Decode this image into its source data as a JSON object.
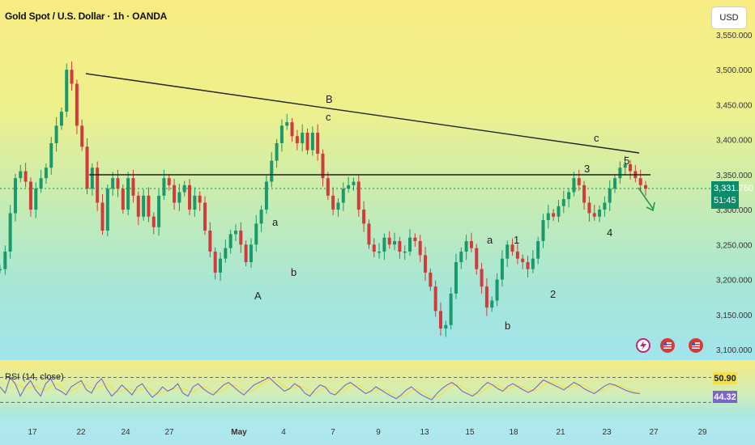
{
  "header": {
    "title": "Gold Spot / U.S. Dollar · 1h · OANDA",
    "currency": "USD"
  },
  "price_axis": {
    "ticks": [
      "3,550.000",
      "3,500.000",
      "3,450.000",
      "3,400.000",
      "3,350.000",
      "3,300.000",
      "3,250.000",
      "3,200.000",
      "3,150.000",
      "3,100.000"
    ]
  },
  "last_price": {
    "value": "3,331.760",
    "countdown": "51:45",
    "color": "#0c8b6a"
  },
  "rsi": {
    "label": "RSI (14, close)",
    "value_a": "50.90",
    "value_b": "44.32",
    "color_a": "#f4e04a",
    "color_b": "#7a66c9"
  },
  "time_axis": {
    "ticks": [
      "17",
      "22",
      "24",
      "27",
      "May",
      "4",
      "7",
      "9",
      "13",
      "15",
      "18",
      "21",
      "23",
      "27",
      "29"
    ]
  },
  "wave_labels": [
    "A",
    "a",
    "b",
    "B",
    "c",
    "a",
    "b",
    "1",
    "2",
    "3",
    "4",
    "5",
    "c"
  ],
  "icons": [
    "lightning-icon",
    "us-flag-icon",
    "us-flag-icon"
  ],
  "chart_data": {
    "type": "line",
    "title": "Gold Spot / U.S. Dollar · 1h · OANDA",
    "ylim": [
      3100,
      3560
    ],
    "series": [
      {
        "values": [
          3215,
          3240,
          3295,
          3345,
          3355,
          3340,
          3300,
          3330,
          3345,
          3360,
          3395,
          3420,
          3440,
          3500,
          3480,
          3420,
          3390,
          3330,
          3360,
          3310,
          3270,
          3330,
          3345,
          3330,
          3300,
          3345,
          3320,
          3290,
          3320,
          3290,
          3275,
          3320,
          3345,
          3335,
          3310,
          3325,
          3335,
          3300,
          3320,
          3310,
          3270,
          3240,
          3210,
          3230,
          3245,
          3265,
          3270,
          3250,
          3225,
          3250,
          3280,
          3300,
          3340,
          3370,
          3395,
          3420,
          3425,
          3405,
          3395,
          3410,
          3385,
          3410,
          3380,
          3345,
          3320,
          3300,
          3310,
          3330,
          3335,
          3340,
          3300,
          3280,
          3250,
          3240,
          3240,
          3260,
          3250,
          3255,
          3240,
          3240,
          3260,
          3255,
          3235,
          3210,
          3190,
          3155,
          3130,
          3135,
          3180,
          3225,
          3240,
          3255,
          3245,
          3215,
          3190,
          3160,
          3170,
          3200,
          3230,
          3250,
          3240,
          3230,
          3225,
          3215,
          3230,
          3255,
          3285,
          3295,
          3290,
          3305,
          3315,
          3325,
          3345,
          3335,
          3310,
          3295,
          3290,
          3300,
          3310,
          3330,
          3345,
          3360,
          3365,
          3355,
          3345,
          3335,
          3330
        ]
      }
    ],
    "rsi": [
      55,
      45,
      70,
      60,
      40,
      55,
      65,
      50,
      40,
      60,
      68,
      52,
      48,
      42,
      55,
      60,
      65,
      50,
      45,
      60,
      68,
      52,
      40,
      48,
      58,
      50,
      42,
      55,
      60,
      48,
      38,
      45,
      55,
      48,
      52,
      60,
      45,
      40,
      55,
      60,
      52,
      46,
      42,
      50,
      58,
      62,
      55,
      48,
      42,
      50,
      58,
      62,
      66,
      70,
      62,
      55,
      48,
      52,
      60,
      55,
      45,
      40,
      50,
      58,
      55,
      45,
      42,
      50,
      58,
      62,
      56,
      50,
      44,
      48,
      55,
      50,
      45,
      40,
      36,
      42,
      50,
      55,
      48,
      42,
      38,
      34,
      44,
      52,
      58,
      62,
      56,
      48,
      44,
      40,
      46,
      55,
      62,
      58,
      52,
      48,
      56,
      60,
      55,
      50,
      46,
      50,
      58,
      66,
      62,
      58,
      54,
      50,
      56,
      62,
      58,
      52,
      48,
      44,
      50,
      56,
      60,
      58,
      54,
      50,
      47,
      45,
      44
    ],
    "rsi_levels": [
      70,
      30
    ]
  }
}
